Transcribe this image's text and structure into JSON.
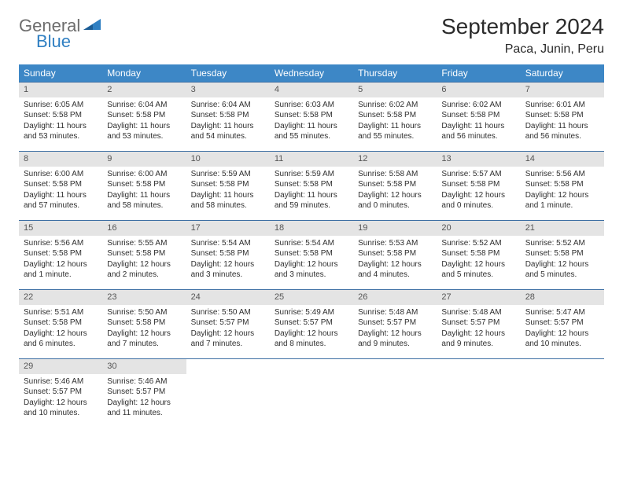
{
  "logo": {
    "general": "General",
    "blue": "Blue"
  },
  "title": "September 2024",
  "location": "Paca, Junin, Peru",
  "colors": {
    "header_bg": "#3d87c6",
    "header_text": "#ffffff",
    "daynum_bg": "#e4e4e4",
    "daynum_text": "#555555",
    "row_border": "#3d6fa3",
    "body_text": "#2f2f2f",
    "logo_gray": "#6d6d6d",
    "logo_blue": "#2f7fc2",
    "page_bg": "#ffffff"
  },
  "weekdays": [
    "Sunday",
    "Monday",
    "Tuesday",
    "Wednesday",
    "Thursday",
    "Friday",
    "Saturday"
  ],
  "weeks": [
    [
      {
        "n": "1",
        "sr": "Sunrise: 6:05 AM",
        "ss": "Sunset: 5:58 PM",
        "d1": "Daylight: 11 hours",
        "d2": "and 53 minutes."
      },
      {
        "n": "2",
        "sr": "Sunrise: 6:04 AM",
        "ss": "Sunset: 5:58 PM",
        "d1": "Daylight: 11 hours",
        "d2": "and 53 minutes."
      },
      {
        "n": "3",
        "sr": "Sunrise: 6:04 AM",
        "ss": "Sunset: 5:58 PM",
        "d1": "Daylight: 11 hours",
        "d2": "and 54 minutes."
      },
      {
        "n": "4",
        "sr": "Sunrise: 6:03 AM",
        "ss": "Sunset: 5:58 PM",
        "d1": "Daylight: 11 hours",
        "d2": "and 55 minutes."
      },
      {
        "n": "5",
        "sr": "Sunrise: 6:02 AM",
        "ss": "Sunset: 5:58 PM",
        "d1": "Daylight: 11 hours",
        "d2": "and 55 minutes."
      },
      {
        "n": "6",
        "sr": "Sunrise: 6:02 AM",
        "ss": "Sunset: 5:58 PM",
        "d1": "Daylight: 11 hours",
        "d2": "and 56 minutes."
      },
      {
        "n": "7",
        "sr": "Sunrise: 6:01 AM",
        "ss": "Sunset: 5:58 PM",
        "d1": "Daylight: 11 hours",
        "d2": "and 56 minutes."
      }
    ],
    [
      {
        "n": "8",
        "sr": "Sunrise: 6:00 AM",
        "ss": "Sunset: 5:58 PM",
        "d1": "Daylight: 11 hours",
        "d2": "and 57 minutes."
      },
      {
        "n": "9",
        "sr": "Sunrise: 6:00 AM",
        "ss": "Sunset: 5:58 PM",
        "d1": "Daylight: 11 hours",
        "d2": "and 58 minutes."
      },
      {
        "n": "10",
        "sr": "Sunrise: 5:59 AM",
        "ss": "Sunset: 5:58 PM",
        "d1": "Daylight: 11 hours",
        "d2": "and 58 minutes."
      },
      {
        "n": "11",
        "sr": "Sunrise: 5:59 AM",
        "ss": "Sunset: 5:58 PM",
        "d1": "Daylight: 11 hours",
        "d2": "and 59 minutes."
      },
      {
        "n": "12",
        "sr": "Sunrise: 5:58 AM",
        "ss": "Sunset: 5:58 PM",
        "d1": "Daylight: 12 hours",
        "d2": "and 0 minutes."
      },
      {
        "n": "13",
        "sr": "Sunrise: 5:57 AM",
        "ss": "Sunset: 5:58 PM",
        "d1": "Daylight: 12 hours",
        "d2": "and 0 minutes."
      },
      {
        "n": "14",
        "sr": "Sunrise: 5:56 AM",
        "ss": "Sunset: 5:58 PM",
        "d1": "Daylight: 12 hours",
        "d2": "and 1 minute."
      }
    ],
    [
      {
        "n": "15",
        "sr": "Sunrise: 5:56 AM",
        "ss": "Sunset: 5:58 PM",
        "d1": "Daylight: 12 hours",
        "d2": "and 1 minute."
      },
      {
        "n": "16",
        "sr": "Sunrise: 5:55 AM",
        "ss": "Sunset: 5:58 PM",
        "d1": "Daylight: 12 hours",
        "d2": "and 2 minutes."
      },
      {
        "n": "17",
        "sr": "Sunrise: 5:54 AM",
        "ss": "Sunset: 5:58 PM",
        "d1": "Daylight: 12 hours",
        "d2": "and 3 minutes."
      },
      {
        "n": "18",
        "sr": "Sunrise: 5:54 AM",
        "ss": "Sunset: 5:58 PM",
        "d1": "Daylight: 12 hours",
        "d2": "and 3 minutes."
      },
      {
        "n": "19",
        "sr": "Sunrise: 5:53 AM",
        "ss": "Sunset: 5:58 PM",
        "d1": "Daylight: 12 hours",
        "d2": "and 4 minutes."
      },
      {
        "n": "20",
        "sr": "Sunrise: 5:52 AM",
        "ss": "Sunset: 5:58 PM",
        "d1": "Daylight: 12 hours",
        "d2": "and 5 minutes."
      },
      {
        "n": "21",
        "sr": "Sunrise: 5:52 AM",
        "ss": "Sunset: 5:58 PM",
        "d1": "Daylight: 12 hours",
        "d2": "and 5 minutes."
      }
    ],
    [
      {
        "n": "22",
        "sr": "Sunrise: 5:51 AM",
        "ss": "Sunset: 5:58 PM",
        "d1": "Daylight: 12 hours",
        "d2": "and 6 minutes."
      },
      {
        "n": "23",
        "sr": "Sunrise: 5:50 AM",
        "ss": "Sunset: 5:58 PM",
        "d1": "Daylight: 12 hours",
        "d2": "and 7 minutes."
      },
      {
        "n": "24",
        "sr": "Sunrise: 5:50 AM",
        "ss": "Sunset: 5:57 PM",
        "d1": "Daylight: 12 hours",
        "d2": "and 7 minutes."
      },
      {
        "n": "25",
        "sr": "Sunrise: 5:49 AM",
        "ss": "Sunset: 5:57 PM",
        "d1": "Daylight: 12 hours",
        "d2": "and 8 minutes."
      },
      {
        "n": "26",
        "sr": "Sunrise: 5:48 AM",
        "ss": "Sunset: 5:57 PM",
        "d1": "Daylight: 12 hours",
        "d2": "and 9 minutes."
      },
      {
        "n": "27",
        "sr": "Sunrise: 5:48 AM",
        "ss": "Sunset: 5:57 PM",
        "d1": "Daylight: 12 hours",
        "d2": "and 9 minutes."
      },
      {
        "n": "28",
        "sr": "Sunrise: 5:47 AM",
        "ss": "Sunset: 5:57 PM",
        "d1": "Daylight: 12 hours",
        "d2": "and 10 minutes."
      }
    ],
    [
      {
        "n": "29",
        "sr": "Sunrise: 5:46 AM",
        "ss": "Sunset: 5:57 PM",
        "d1": "Daylight: 12 hours",
        "d2": "and 10 minutes."
      },
      {
        "n": "30",
        "sr": "Sunrise: 5:46 AM",
        "ss": "Sunset: 5:57 PM",
        "d1": "Daylight: 12 hours",
        "d2": "and 11 minutes."
      },
      {
        "empty": true
      },
      {
        "empty": true
      },
      {
        "empty": true
      },
      {
        "empty": true
      },
      {
        "empty": true
      }
    ]
  ]
}
